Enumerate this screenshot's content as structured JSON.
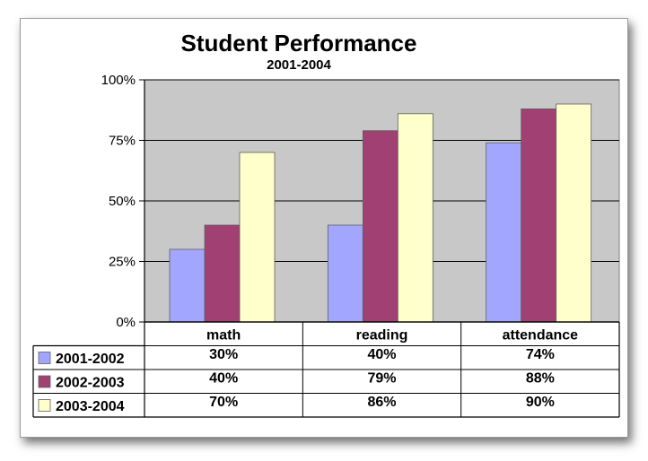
{
  "chart_data": {
    "type": "bar",
    "title": "Student Performance",
    "subtitle": "2001-2004",
    "categories": [
      "math",
      "reading",
      "attendance"
    ],
    "series": [
      {
        "name": "2001-2002",
        "values": [
          30,
          40,
          74
        ],
        "labels": [
          "30%",
          "40%",
          "74%"
        ],
        "color": "#a3a6ff"
      },
      {
        "name": "2002-2003",
        "values": [
          40,
          79,
          88
        ],
        "labels": [
          "40%",
          "79%",
          "88%"
        ],
        "color": "#a14072"
      },
      {
        "name": "2003-2004",
        "values": [
          70,
          86,
          90
        ],
        "labels": [
          "70%",
          "86%",
          "90%"
        ],
        "color": "#ffffcc"
      }
    ],
    "ylim": [
      0,
      100
    ],
    "yticks": [
      0,
      25,
      50,
      75,
      100
    ],
    "ytick_labels": [
      "0%",
      "25%",
      "50%",
      "75%",
      "100%"
    ],
    "grid": true,
    "plot_background": "#c8c8c8",
    "legend_placement": "data-table-left"
  }
}
